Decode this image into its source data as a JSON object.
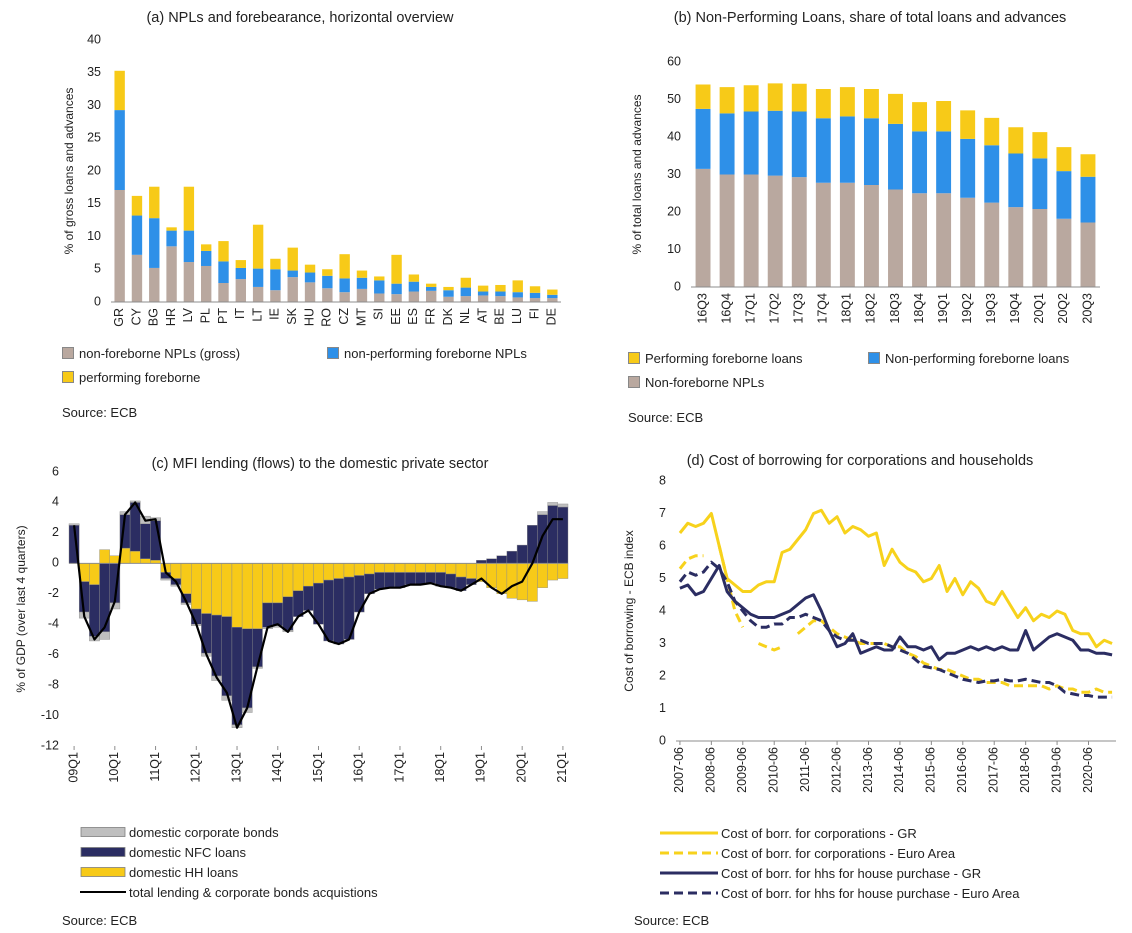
{
  "chart_data": [
    {
      "type": "bar",
      "stacked": true,
      "title": "(a) NPLs and forebearance, horizontal overview",
      "ylabel": "% of gross loans and advances",
      "source": "Source: ECB",
      "categories": [
        "GR",
        "CY",
        "BG",
        "HR",
        "LV",
        "PL",
        "PT",
        "IT",
        "LT",
        "IE",
        "SK",
        "HU",
        "RO",
        "CZ",
        "MT",
        "SI",
        "EE",
        "ES",
        "FR",
        "DK",
        "NL",
        "AT",
        "BE",
        "LU",
        "FI",
        "DE"
      ],
      "series": [
        {
          "name": "non-foreborne NPLs (gross)",
          "color": "#b9a89f",
          "values": [
            17.1,
            7.2,
            5.2,
            8.5,
            6.1,
            5.5,
            2.9,
            3.5,
            2.3,
            1.8,
            3.8,
            3.0,
            2.1,
            1.5,
            2.0,
            1.3,
            1.2,
            1.6,
            1.7,
            0.8,
            0.9,
            1.0,
            0.9,
            0.7,
            0.6,
            0.6
          ]
        },
        {
          "name": "non-performing foreborne NPLs",
          "color": "#2e90e8",
          "values": [
            12.2,
            6.0,
            7.6,
            2.4,
            4.8,
            2.3,
            3.3,
            1.7,
            2.8,
            3.2,
            1.0,
            1.5,
            1.9,
            2.1,
            1.7,
            2.0,
            1.6,
            1.5,
            0.6,
            1.0,
            1.3,
            0.6,
            0.7,
            0.8,
            0.8,
            0.5
          ]
        },
        {
          "name": "performing foreborne",
          "color": "#f7ca18",
          "values": [
            6.0,
            3.0,
            4.8,
            0.5,
            6.7,
            1.0,
            3.1,
            1.2,
            6.7,
            1.6,
            3.5,
            1.2,
            1.0,
            3.7,
            1.1,
            0.6,
            4.4,
            1.1,
            0.5,
            0.5,
            1.5,
            0.9,
            1.0,
            1.8,
            1.0,
            0.8
          ]
        }
      ],
      "ylim": [
        0,
        40
      ],
      "yticks": [
        0,
        5,
        10,
        15,
        20,
        25,
        30,
        35,
        40
      ]
    },
    {
      "type": "bar",
      "stacked": true,
      "title": "(b) Non-Performing Loans, share of total loans and advances",
      "ylabel": "% of total loans and advances",
      "source": "Source: ECB",
      "categories": [
        "16Q3",
        "16Q4",
        "17Q1",
        "17Q2",
        "17Q3",
        "17Q4",
        "18Q1",
        "18Q2",
        "18Q3",
        "18Q4",
        "19Q1",
        "19Q2",
        "19Q3",
        "19Q4",
        "20Q1",
        "20Q2",
        "20Q3"
      ],
      "series": [
        {
          "name": "Performing foreborne loans",
          "color": "#f7ca18",
          "values": [
            6.5,
            7.0,
            7.0,
            7.3,
            7.4,
            7.8,
            7.8,
            7.8,
            8.0,
            7.8,
            8.1,
            7.6,
            7.3,
            7.0,
            7.0,
            6.4,
            6.0
          ]
        },
        {
          "name": "Non-performing foreborne loans",
          "color": "#2e90e8",
          "values": [
            16.0,
            16.3,
            16.8,
            17.3,
            17.5,
            17.2,
            17.7,
            17.8,
            17.5,
            16.5,
            16.5,
            15.7,
            15.3,
            14.3,
            13.5,
            12.7,
            12.2
          ]
        },
        {
          "name": "Non-foreborne NPLs",
          "color": "#b9a89f",
          "values": [
            31.5,
            30.0,
            30.0,
            29.7,
            29.3,
            27.8,
            27.8,
            27.2,
            26.0,
            25.0,
            25.0,
            23.8,
            22.5,
            21.3,
            20.8,
            18.2,
            17.2
          ]
        }
      ],
      "ylim": [
        0,
        60
      ],
      "yticks": [
        0,
        10,
        20,
        30,
        40,
        50,
        60
      ]
    },
    {
      "type": "bar",
      "stacked": true,
      "title": "(c) MFI lending (flows) to the domestic private sector",
      "ylabel": "% of GDP (over last 4 quarters)",
      "source": "Source: ECB",
      "categories": [
        "09Q1",
        null,
        null,
        null,
        "10Q1",
        null,
        null,
        null,
        "11Q1",
        null,
        null,
        null,
        "12Q1",
        null,
        null,
        null,
        "13Q1",
        null,
        null,
        null,
        "14Q1",
        null,
        null,
        null,
        "15Q1",
        null,
        null,
        null,
        "16Q1",
        null,
        null,
        null,
        "17Q1",
        null,
        null,
        null,
        "18Q1",
        null,
        null,
        null,
        "19Q1",
        null,
        null,
        null,
        "20Q1",
        null,
        null,
        null,
        "21Q1"
      ],
      "series": [
        {
          "name": "domestic corporate bonds",
          "color": "#bfbfbf",
          "values": [
            0.1,
            -0.4,
            -0.3,
            -0.5,
            -0.4,
            0.2,
            0.1,
            0.5,
            0.2,
            -0.1,
            -0.1,
            -0.1,
            -0.1,
            -0.2,
            -0.3,
            -0.3,
            -0.2,
            -0.3,
            -0.1,
            -0.1,
            -0.1,
            -0.1,
            0,
            0,
            0,
            0,
            0,
            0,
            0,
            0,
            0,
            0,
            0,
            0,
            0,
            0,
            0,
            0,
            0,
            0,
            0,
            0,
            0,
            0,
            0,
            0,
            0.2,
            0.2,
            0.2
          ]
        },
        {
          "name": "domestic NFC loans",
          "color": "#2b2d62",
          "values": [
            2.5,
            -2.0,
            -3.4,
            -4.5,
            -2.6,
            2.2,
            3.2,
            2.3,
            2.6,
            -0.4,
            -0.4,
            -0.6,
            -1.0,
            -2.6,
            -4.0,
            -5.2,
            -6.4,
            -5.2,
            -2.5,
            -1.6,
            -1.5,
            -2.2,
            -1.7,
            -1.6,
            -2.7,
            -4.0,
            -4.3,
            -4.1,
            -2.4,
            -1.3,
            -1.1,
            -1.0,
            -1.0,
            -0.8,
            -0.8,
            -0.7,
            -0.9,
            -0.9,
            -0.9,
            -0.4,
            0.2,
            0.3,
            0.5,
            0.8,
            1.2,
            2.5,
            3.2,
            3.8,
            3.7
          ]
        },
        {
          "name": "domestic HH loans",
          "color": "#f7ca18",
          "values": [
            0,
            -1.2,
            -1.4,
            0.9,
            0.5,
            1.0,
            0.8,
            0.3,
            0.2,
            -0.6,
            -1.0,
            -2.0,
            -3.0,
            -3.3,
            -3.4,
            -3.5,
            -4.2,
            -4.3,
            -4.3,
            -2.6,
            -2.6,
            -2.2,
            -1.8,
            -1.5,
            -1.3,
            -1.1,
            -1.0,
            -0.9,
            -0.8,
            -0.7,
            -0.6,
            -0.6,
            -0.6,
            -0.6,
            -0.6,
            -0.6,
            -0.6,
            -0.7,
            -0.9,
            -1.0,
            -1.2,
            -1.6,
            -2.0,
            -2.3,
            -2.4,
            -2.5,
            -1.6,
            -1.1,
            -1.0
          ]
        },
        {
          "name": "total lending & corporate bonds acquistions",
          "color": "#000000",
          "type": "line",
          "values": [
            2.5,
            -3.5,
            -5.0,
            -4.2,
            -2.5,
            3.2,
            4.0,
            2.8,
            2.9,
            -0.6,
            -1.2,
            -2.5,
            -4.0,
            -6.0,
            -7.5,
            -8.5,
            -10.8,
            -9.5,
            -6.8,
            -4.2,
            -4.0,
            -4.5,
            -3.5,
            -3.1,
            -4.0,
            -5.1,
            -5.3,
            -5.0,
            -3.2,
            -2.0,
            -1.7,
            -1.6,
            -1.6,
            -1.4,
            -1.4,
            -1.3,
            -1.5,
            -1.6,
            -1.8,
            -1.4,
            -1.0,
            -1.6,
            -2.0,
            -1.5,
            -1.2,
            0,
            1.8,
            2.9,
            2.9
          ]
        }
      ],
      "ylim": [
        -12,
        6
      ],
      "yticks": [
        -12,
        -10,
        -8,
        -6,
        -4,
        -2,
        0,
        2,
        4,
        6
      ]
    },
    {
      "type": "line",
      "title": "(d) Cost of borrowing for corporations and households",
      "ylabel": "Cost of borrowing - ECB index",
      "source": "Source: ECB",
      "categories": [
        "2007-06",
        null,
        null,
        null,
        "2008-06",
        null,
        null,
        null,
        "2009-06",
        null,
        null,
        null,
        "2010-06",
        null,
        null,
        null,
        "2011-06",
        null,
        null,
        null,
        "2012-06",
        null,
        null,
        null,
        "2013-06",
        null,
        null,
        null,
        "2014-06",
        null,
        null,
        null,
        "2015-06",
        null,
        null,
        null,
        "2016-06",
        null,
        null,
        null,
        "2017-06",
        null,
        null,
        null,
        "2018-06",
        null,
        null,
        null,
        "2019-06",
        null,
        null,
        null,
        "2020-06",
        null,
        null,
        null
      ],
      "series": [
        {
          "name": "Cost of borr. for corporations - GR",
          "color": "#f7d21c",
          "dashed": false,
          "values": [
            6.4,
            6.7,
            6.6,
            6.7,
            7.0,
            6.0,
            5.0,
            4.8,
            4.6,
            4.6,
            4.8,
            4.9,
            4.9,
            5.8,
            5.9,
            6.2,
            6.5,
            7.0,
            7.1,
            6.7,
            6.9,
            6.4,
            6.6,
            6.5,
            6.3,
            6.4,
            5.4,
            5.9,
            5.5,
            5.3,
            5.2,
            4.9,
            5.0,
            5.4,
            4.6,
            5.0,
            4.5,
            4.9,
            4.7,
            4.3,
            4.2,
            4.6,
            4.2,
            3.8,
            4.1,
            3.7,
            3.9,
            3.8,
            4.0,
            3.9,
            3.4,
            3.3,
            3.3,
            2.9,
            3.1,
            3.0
          ]
        },
        {
          "name": "Cost of borr. for corporations - Euro Area",
          "color": "#f7d21c",
          "dashed": true,
          "values": [
            5.3,
            5.6,
            5.7,
            5.7,
            null,
            6.0,
            5.0,
            4.0,
            3.5,
            null,
            3.0,
            2.9,
            2.8,
            2.9,
            null,
            3.3,
            3.5,
            3.7,
            3.7,
            3.5,
            3.3,
            3.2,
            3.1,
            3.0,
            3.0,
            3.0,
            3.0,
            2.9,
            2.9,
            2.7,
            2.6,
            2.4,
            2.3,
            2.2,
            2.2,
            2.1,
            2.0,
            1.9,
            1.9,
            1.8,
            1.8,
            1.8,
            1.7,
            1.7,
            1.7,
            1.7,
            1.7,
            1.6,
            1.7,
            1.6,
            1.6,
            1.5,
            1.5,
            1.6,
            1.5,
            1.5
          ]
        },
        {
          "name": "Cost of borr. for hhs for house purchase - GR",
          "color": "#2b2d62",
          "dashed": false,
          "values": [
            4.7,
            4.8,
            4.5,
            4.6,
            5.0,
            5.4,
            4.6,
            4.3,
            4.1,
            3.9,
            3.8,
            3.8,
            3.8,
            3.9,
            4.0,
            4.2,
            4.4,
            4.5,
            4.0,
            3.4,
            2.9,
            3.0,
            3.3,
            2.7,
            2.8,
            2.9,
            2.8,
            2.8,
            3.2,
            2.9,
            2.9,
            2.8,
            2.9,
            2.5,
            2.7,
            2.7,
            2.8,
            2.9,
            2.8,
            2.9,
            2.8,
            2.9,
            2.8,
            2.8,
            3.4,
            2.8,
            3.0,
            3.2,
            3.3,
            3.2,
            3.1,
            2.8,
            2.8,
            2.7,
            2.7,
            2.65
          ]
        },
        {
          "name": "Cost of borr. for hhs for house purchase - Euro Area",
          "color": "#2b2d62",
          "dashed": true,
          "values": [
            4.9,
            5.2,
            5.1,
            5.2,
            5.5,
            5.3,
            4.9,
            4.3,
            4.0,
            3.7,
            3.5,
            3.5,
            3.6,
            3.6,
            3.8,
            3.8,
            3.9,
            3.8,
            3.7,
            3.4,
            3.2,
            3.1,
            3.1,
            3.1,
            3.0,
            3.0,
            3.0,
            2.9,
            2.8,
            2.7,
            2.5,
            2.3,
            2.25,
            2.2,
            2.1,
            2.0,
            1.9,
            1.85,
            1.8,
            1.85,
            1.85,
            1.9,
            1.85,
            1.85,
            1.9,
            1.85,
            1.8,
            1.8,
            1.7,
            1.5,
            1.45,
            1.4,
            1.4,
            1.35,
            1.35,
            1.35
          ]
        }
      ],
      "ylim": [
        0,
        8
      ],
      "yticks": [
        0,
        1,
        2,
        3,
        4,
        5,
        6,
        7,
        8
      ]
    }
  ]
}
